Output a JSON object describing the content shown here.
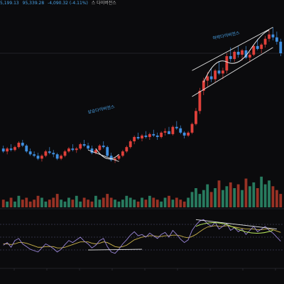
{
  "header": {
    "open": "5,199.13",
    "close": "95,339.28",
    "change": "-4,090.32 (-4.11%)",
    "title": "스 다이버전스"
  },
  "annotations": {
    "upper_left": "상승다이버전스",
    "upper_right": "하락다이버전스"
  },
  "colors": {
    "up": "#e0403a",
    "down": "#3f8fe0",
    "volume_up": "#2e8f6e",
    "volume_down": "#b23a2a",
    "osc_line": "#9a86d8",
    "osc_signal": "#c9b14a",
    "trend_line": "#e6e6e6",
    "highlight": "#b8e65a"
  },
  "chart_data": [
    {
      "type": "candlestick",
      "title": "",
      "series": [
        {
          "name": "",
          "values": [
            [
              64,
              66,
              61,
              62
            ],
            [
              62,
              65,
              60,
              64
            ],
            [
              64,
              67,
              62,
              63
            ],
            [
              63,
              66,
              62,
              65
            ],
            [
              65,
              69,
              64,
              68
            ],
            [
              68,
              70,
              65,
              66
            ],
            [
              66,
              67,
              61,
              62
            ],
            [
              62,
              64,
              59,
              60
            ],
            [
              60,
              62,
              58,
              59
            ],
            [
              59,
              61,
              56,
              57
            ],
            [
              57,
              60,
              55,
              59
            ],
            [
              59,
              63,
              58,
              62
            ],
            [
              62,
              65,
              60,
              61
            ],
            [
              61,
              63,
              58,
              60
            ],
            [
              60,
              61,
              56,
              57
            ],
            [
              57,
              60,
              56,
              59
            ],
            [
              59,
              63,
              58,
              62
            ],
            [
              62,
              65,
              61,
              64
            ],
            [
              64,
              67,
              62,
              63
            ],
            [
              63,
              65,
              61,
              64
            ],
            [
              64,
              68,
              63,
              67
            ],
            [
              67,
              70,
              65,
              66
            ],
            [
              66,
              68,
              63,
              64
            ],
            [
              64,
              66,
              60,
              61
            ],
            [
              61,
              64,
              60,
              63
            ],
            [
              63,
              67,
              62,
              66
            ],
            [
              66,
              69,
              64,
              65
            ],
            [
              65,
              66,
              58,
              59
            ],
            [
              59,
              61,
              55,
              56
            ],
            [
              56,
              58,
              54,
              57
            ],
            [
              57,
              60,
              56,
              59
            ],
            [
              59,
              63,
              58,
              62
            ],
            [
              62,
              66,
              61,
              65
            ],
            [
              65,
              70,
              64,
              69
            ],
            [
              69,
              73,
              67,
              72
            ],
            [
              72,
              75,
              70,
              71
            ],
            [
              71,
              74,
              69,
              73
            ],
            [
              73,
              76,
              71,
              72
            ],
            [
              72,
              75,
              70,
              74
            ],
            [
              74,
              77,
              72,
              73
            ],
            [
              73,
              75,
              70,
              72
            ],
            [
              72,
              76,
              71,
              75
            ],
            [
              75,
              78,
              73,
              76
            ],
            [
              76,
              79,
              74,
              74
            ],
            [
              74,
              80,
              73,
              79
            ],
            [
              79,
              83,
              77,
              78
            ],
            [
              78,
              80,
              74,
              75
            ],
            [
              75,
              76,
              71,
              73
            ],
            [
              73,
              76,
              72,
              75
            ],
            [
              75,
              82,
              74,
              81
            ],
            [
              81,
              92,
              80,
              90
            ],
            [
              90,
              106,
              88,
              104
            ],
            [
              104,
              113,
              101,
              111
            ],
            [
              111,
              117,
              107,
              114
            ],
            [
              114,
              120,
              110,
              112
            ],
            [
              112,
              119,
              110,
              118
            ],
            [
              118,
              124,
              115,
              116
            ],
            [
              116,
              120,
              112,
              118
            ],
            [
              118,
              130,
              116,
              128
            ],
            [
              128,
              134,
              124,
              126
            ],
            [
              126,
              132,
              124,
              131
            ],
            [
              131,
              135,
              127,
              129
            ],
            [
              129,
              133,
              125,
              132
            ],
            [
              132,
              135,
              126,
              127
            ],
            [
              127,
              131,
              124,
              129
            ],
            [
              129,
              136,
              128,
              135
            ],
            [
              135,
              140,
              132,
              133
            ],
            [
              133,
              137,
              130,
              136
            ],
            [
              136,
              142,
              134,
              140
            ],
            [
              140,
              146,
              138,
              143
            ],
            [
              143,
              148,
              139,
              141
            ],
            [
              141,
              145,
              136,
              138
            ],
            [
              138,
              140,
              128,
              130
            ]
          ]
        }
      ],
      "ylim": [
        40,
        160
      ]
    },
    {
      "type": "bar",
      "title": "",
      "series": [
        {
          "name": "",
          "values": [
            4,
            3,
            5,
            3,
            6,
            4,
            5,
            3,
            4,
            6,
            5,
            3,
            4,
            5,
            7,
            4,
            3,
            5,
            4,
            6,
            3,
            5,
            4,
            3,
            6,
            4,
            5,
            7,
            5,
            4,
            3,
            4,
            6,
            5,
            4,
            3,
            5,
            4,
            6,
            5,
            4,
            3,
            5,
            6,
            4,
            5,
            4,
            3,
            5,
            8,
            10,
            7,
            9,
            12,
            8,
            10,
            14,
            9,
            11,
            13,
            10,
            12,
            9,
            15,
            11,
            13,
            10,
            16,
            12,
            14,
            11,
            9,
            7
          ]
        }
      ],
      "ylim": [
        0,
        20
      ]
    },
    {
      "type": "line",
      "title": "",
      "series": [
        {
          "name": "",
          "values": [
            48,
            52,
            45,
            55,
            58,
            50,
            46,
            42,
            40,
            38,
            44,
            50,
            47,
            43,
            38,
            42,
            49,
            55,
            52,
            56,
            60,
            54,
            50,
            44,
            48,
            55,
            58,
            46,
            38,
            36,
            42,
            50,
            56,
            63,
            68,
            62,
            64,
            60,
            66,
            62,
            58,
            64,
            67,
            60,
            70,
            64,
            57,
            52,
            56,
            70,
            78,
            84,
            86,
            80,
            76,
            82,
            72,
            76,
            80,
            70,
            74,
            68,
            72,
            64,
            70,
            76,
            68,
            72,
            76,
            70,
            66,
            60,
            54
          ]
        },
        {
          "name": "",
          "values": [
            50,
            50,
            49,
            50,
            52,
            52,
            51,
            49,
            47,
            45,
            45,
            46,
            46,
            46,
            44,
            44,
            45,
            47,
            49,
            51,
            53,
            53,
            53,
            51,
            50,
            51,
            53,
            52,
            49,
            46,
            45,
            46,
            48,
            52,
            56,
            58,
            60,
            61,
            62,
            62,
            61,
            61,
            62,
            62,
            63,
            63,
            62,
            60,
            59,
            61,
            64,
            68,
            72,
            75,
            76,
            77,
            76,
            76,
            77,
            76,
            75,
            74,
            73,
            72,
            72,
            72,
            71,
            71,
            72,
            72,
            71,
            69,
            67
          ]
        }
      ],
      "ylim": [
        20,
        100
      ]
    }
  ]
}
